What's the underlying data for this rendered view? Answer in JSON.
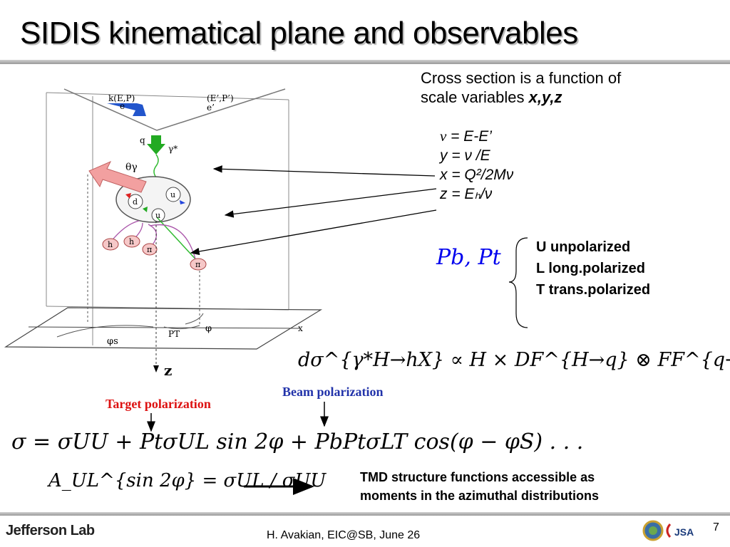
{
  "title": "SIDIS kinematical plane and observables",
  "intro": {
    "line1": "Cross section is a function of",
    "line2_prefix": "scale variables ",
    "line2_vars": "x,y,z"
  },
  "definitions": [
    {
      "lhs": "ν",
      "rhs": " = E-E’"
    },
    {
      "lhs": "y",
      "rhs": " = ν /E"
    },
    {
      "lhs": "x",
      "rhs": " = Q²/2Mν"
    },
    {
      "lhs": "z",
      "rhs": " = Eₕ/ν"
    }
  ],
  "polarization": {
    "symbol": "Pb, Pt",
    "states": [
      "U unpolarized",
      "L long.polarized",
      "T trans.polarized"
    ]
  },
  "cross_section_formula": "dσ^{γ*H→hX} ∝ H × DF^{H→q} ⊗ FF^{q→h}",
  "labels": {
    "beam_polarization": "Beam polarization",
    "target_polarization": "Target polarization"
  },
  "sigma_expansion": "σ = σUU + PtσUL sin 2φ + PbPtσLT cos(φ − φS) . . .",
  "asymmetry": "A_UL^{sin 2φ} = σUL / σUU",
  "tmd_text": {
    "line1": "TMD structure functions accessible as",
    "line2": "moments in the azimuthal distributions"
  },
  "diagram": {
    "beam": "k(E,P)",
    "scattered": "(E’,P’)",
    "electron": "e",
    "electron_out": "e’",
    "photon": "q",
    "gamma": "γ*",
    "theta": "θγ",
    "quark_u": "u",
    "quark_d": "d",
    "quark_u2": "u",
    "hadron1": "h",
    "hadron2": "h",
    "pion1": "π",
    "pion2": "π",
    "phi_s": "φs",
    "pt": "PT",
    "phi": "φ",
    "x_axis": "x",
    "z_axis": "z"
  },
  "footer": {
    "logo": "Jefferson Lab",
    "credit": "H. Avakian, EIC@SB,  June 26",
    "page": "7",
    "jsa": "JSA"
  }
}
